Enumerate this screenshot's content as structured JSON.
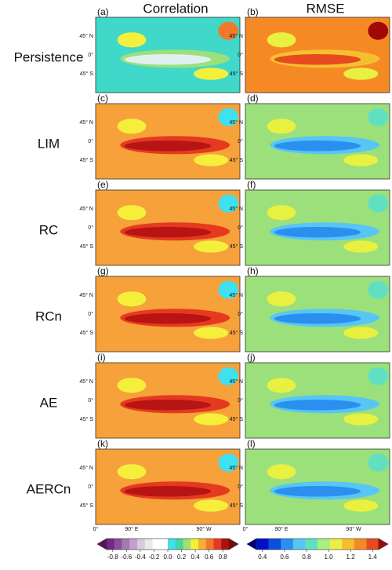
{
  "columns": [
    "Correlation",
    "RMSE"
  ],
  "rows": [
    {
      "label": "Persistence",
      "panels": [
        "(a)",
        "(b)"
      ]
    },
    {
      "label": "LIM",
      "panels": [
        "(c)",
        "(d)"
      ]
    },
    {
      "label": "RC",
      "panels": [
        "(e)",
        "(f)"
      ]
    },
    {
      "label": "RCn",
      "panels": [
        "(g)",
        "(h)"
      ]
    },
    {
      "label": "AE",
      "panels": [
        "(i)",
        "(j)"
      ]
    },
    {
      "label": "AERCn",
      "panels": [
        "(k)",
        "(l)"
      ]
    }
  ],
  "lat_labels": [
    "45° N",
    "0°",
    "45° S"
  ],
  "lon_labels": [
    "0°",
    "90° E",
    "90° W"
  ],
  "colorbars": [
    {
      "lim": [
        -0.8,
        0.8
      ],
      "ticks": [
        -0.8,
        -0.6,
        -0.4,
        -0.2,
        {
          "value": 0,
          "label": "0.0"
        },
        0.2,
        0.4,
        0.6,
        0.8
      ],
      "colors": [
        "#5a0f5e",
        "#6f2c7f",
        "#8a4f9a",
        "#a479b3",
        "#bfa3cb",
        "#d8cbe0",
        "#ebe6ef",
        "#ffffff",
        "#ffffff",
        "#40e0f0",
        "#40d8a0",
        "#a0e070",
        "#f5ef3c",
        "#f5b030",
        "#f07a2a",
        "#e53a20",
        "#b01010",
        "#7a0808"
      ]
    },
    {
      "lim": [
        0.4,
        1.4
      ],
      "ticks": [
        0.4,
        0.6,
        0.8,
        {
          "value": 1,
          "label": "1.0"
        },
        1.2,
        1.4
      ],
      "colors": [
        "#00007a",
        "#0010c8",
        "#0a4fe0",
        "#2b8ff0",
        "#58c6f5",
        "#60e0c0",
        "#a8ee80",
        "#e8f040",
        "#f5c030",
        "#f58a25",
        "#e84a20",
        "#a00808"
      ]
    }
  ]
}
